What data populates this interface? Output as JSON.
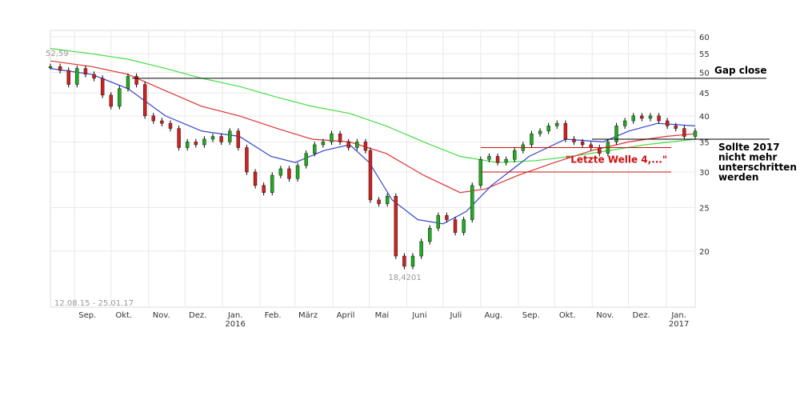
{
  "chart_data": {
    "type": "line",
    "ylim": [
      15,
      62
    ],
    "y_scale": "log",
    "yticks": [
      20,
      25,
      30,
      35,
      40,
      45,
      50,
      55,
      60
    ],
    "xlim": [
      "2015-08-12",
      "2017-01-25"
    ],
    "date_range_label": "12.08.15 - 25.01.17",
    "month_ticks": [
      {
        "date": "2015-09-01",
        "label": "Sep."
      },
      {
        "date": "2015-10-01",
        "label": "Okt."
      },
      {
        "date": "2015-11-01",
        "label": "Nov."
      },
      {
        "date": "2015-12-01",
        "label": "Dez."
      },
      {
        "date": "2016-01-01",
        "label": "Jan.",
        "year": "2016"
      },
      {
        "date": "2016-02-01",
        "label": "Feb."
      },
      {
        "date": "2016-03-01",
        "label": "März"
      },
      {
        "date": "2016-04-01",
        "label": "April"
      },
      {
        "date": "2016-05-01",
        "label": "Mai"
      },
      {
        "date": "2016-06-01",
        "label": "Juni"
      },
      {
        "date": "2016-07-01",
        "label": "Juli"
      },
      {
        "date": "2016-08-01",
        "label": "Aug."
      },
      {
        "date": "2016-09-01",
        "label": "Sep."
      },
      {
        "date": "2016-10-01",
        "label": "Okt."
      },
      {
        "date": "2016-11-01",
        "label": "Nov."
      },
      {
        "date": "2016-12-01",
        "label": "Dez."
      },
      {
        "date": "2017-01-01",
        "label": "Jan.",
        "year": "2017"
      }
    ],
    "price": {
      "color": "#000000",
      "points": [
        [
          "2015-08-12",
          51.5
        ],
        [
          "2015-08-20",
          50.5
        ],
        [
          "2015-08-27",
          47.0
        ],
        [
          "2015-09-03",
          51.0
        ],
        [
          "2015-09-10",
          49.5
        ],
        [
          "2015-09-17",
          48.5
        ],
        [
          "2015-09-24",
          44.5
        ],
        [
          "2015-10-01",
          42.0
        ],
        [
          "2015-10-08",
          46.0
        ],
        [
          "2015-10-15",
          49.0
        ],
        [
          "2015-10-22",
          47.0
        ],
        [
          "2015-10-29",
          40.0
        ],
        [
          "2015-11-05",
          39.0
        ],
        [
          "2015-11-12",
          38.5
        ],
        [
          "2015-11-19",
          37.5
        ],
        [
          "2015-11-26",
          34.0
        ],
        [
          "2015-12-03",
          35.0
        ],
        [
          "2015-12-10",
          34.5
        ],
        [
          "2015-12-17",
          35.5
        ],
        [
          "2015-12-24",
          36.0
        ],
        [
          "2015-12-31",
          35.0
        ],
        [
          "2016-01-07",
          37.0
        ],
        [
          "2016-01-14",
          34.0
        ],
        [
          "2016-01-21",
          30.0
        ],
        [
          "2016-01-28",
          28.0
        ],
        [
          "2016-02-04",
          27.0
        ],
        [
          "2016-02-11",
          29.5
        ],
        [
          "2016-02-18",
          30.5
        ],
        [
          "2016-02-25",
          29.0
        ],
        [
          "2016-03-03",
          31.0
        ],
        [
          "2016-03-10",
          33.0
        ],
        [
          "2016-03-17",
          34.5
        ],
        [
          "2016-03-24",
          35.0
        ],
        [
          "2016-03-31",
          36.5
        ],
        [
          "2016-04-07",
          35.0
        ],
        [
          "2016-04-14",
          34.0
        ],
        [
          "2016-04-21",
          35.0
        ],
        [
          "2016-04-28",
          33.5
        ],
        [
          "2016-05-02",
          26.0
        ],
        [
          "2016-05-09",
          25.5
        ],
        [
          "2016-05-16",
          26.5
        ],
        [
          "2016-05-23",
          19.5
        ],
        [
          "2016-05-30",
          18.5
        ],
        [
          "2016-06-06",
          19.5
        ],
        [
          "2016-06-13",
          21.0
        ],
        [
          "2016-06-20",
          22.5
        ],
        [
          "2016-06-27",
          24.0
        ],
        [
          "2016-07-04",
          23.5
        ],
        [
          "2016-07-11",
          22.0
        ],
        [
          "2016-07-18",
          23.5
        ],
        [
          "2016-07-25",
          28.0
        ],
        [
          "2016-08-01",
          32.0
        ],
        [
          "2016-08-08",
          32.5
        ],
        [
          "2016-08-15",
          31.5
        ],
        [
          "2016-08-22",
          32.0
        ],
        [
          "2016-08-29",
          33.5
        ],
        [
          "2016-09-05",
          34.5
        ],
        [
          "2016-09-12",
          36.5
        ],
        [
          "2016-09-19",
          37.0
        ],
        [
          "2016-09-26",
          38.0
        ],
        [
          "2016-10-03",
          38.5
        ],
        [
          "2016-10-10",
          35.5
        ],
        [
          "2016-10-17",
          35.0
        ],
        [
          "2016-10-24",
          34.5
        ],
        [
          "2016-10-31",
          34.0
        ],
        [
          "2016-11-07",
          33.0
        ],
        [
          "2016-11-14",
          35.0
        ],
        [
          "2016-11-21",
          38.0
        ],
        [
          "2016-11-28",
          39.0
        ],
        [
          "2016-12-05",
          40.0
        ],
        [
          "2016-12-12",
          39.5
        ],
        [
          "2016-12-19",
          40.0
        ],
        [
          "2016-12-26",
          39.0
        ],
        [
          "2017-01-02",
          38.0
        ],
        [
          "2017-01-09",
          37.5
        ],
        [
          "2017-01-16",
          36.0
        ],
        [
          "2017-01-25",
          37.0
        ]
      ]
    },
    "ma_short": {
      "color": "#3344cc",
      "points": [
        [
          "2015-08-12",
          51.0
        ],
        [
          "2015-09-15",
          49.5
        ],
        [
          "2015-10-15",
          46.0
        ],
        [
          "2015-11-15",
          40.0
        ],
        [
          "2015-12-15",
          37.0
        ],
        [
          "2016-01-15",
          36.0
        ],
        [
          "2016-02-10",
          32.5
        ],
        [
          "2016-03-01",
          31.5
        ],
        [
          "2016-03-25",
          33.5
        ],
        [
          "2016-04-15",
          34.5
        ],
        [
          "2016-05-01",
          31.5
        ],
        [
          "2016-05-20",
          26.0
        ],
        [
          "2016-06-10",
          23.5
        ],
        [
          "2016-07-01",
          23.0
        ],
        [
          "2016-07-20",
          24.5
        ],
        [
          "2016-08-10",
          28.0
        ],
        [
          "2016-09-10",
          32.5
        ],
        [
          "2016-10-10",
          35.5
        ],
        [
          "2016-11-10",
          35.0
        ],
        [
          "2016-12-01",
          37.0
        ],
        [
          "2016-12-25",
          38.5
        ],
        [
          "2017-01-25",
          38.0
        ]
      ]
    },
    "ma_mid": {
      "color": "#dd3333",
      "points": [
        [
          "2015-08-12",
          53.0
        ],
        [
          "2015-09-15",
          51.5
        ],
        [
          "2015-10-15",
          49.5
        ],
        [
          "2015-11-15",
          45.5
        ],
        [
          "2015-12-15",
          42.0
        ],
        [
          "2016-01-15",
          40.0
        ],
        [
          "2016-02-15",
          37.5
        ],
        [
          "2016-03-15",
          35.5
        ],
        [
          "2016-04-15",
          35.0
        ],
        [
          "2016-05-15",
          33.0
        ],
        [
          "2016-06-15",
          29.5
        ],
        [
          "2016-07-15",
          27.0
        ],
        [
          "2016-08-05",
          27.5
        ],
        [
          "2016-09-01",
          29.5
        ],
        [
          "2016-10-01",
          31.5
        ],
        [
          "2016-11-01",
          33.5
        ],
        [
          "2016-12-01",
          35.0
        ],
        [
          "2017-01-01",
          36.0
        ],
        [
          "2017-01-25",
          36.5
        ]
      ]
    },
    "ma_long": {
      "color": "#44dd44",
      "points": [
        [
          "2015-08-12",
          56.5
        ],
        [
          "2015-09-15",
          55.0
        ],
        [
          "2015-10-15",
          53.5
        ],
        [
          "2015-11-15",
          51.0
        ],
        [
          "2015-12-15",
          48.5
        ],
        [
          "2016-01-15",
          46.5
        ],
        [
          "2016-02-15",
          44.0
        ],
        [
          "2016-03-15",
          42.0
        ],
        [
          "2016-04-15",
          40.5
        ],
        [
          "2016-05-15",
          38.0
        ],
        [
          "2016-06-15",
          35.0
        ],
        [
          "2016-07-15",
          32.5
        ],
        [
          "2016-08-15",
          31.5
        ],
        [
          "2016-09-15",
          31.8
        ],
        [
          "2016-10-15",
          32.5
        ],
        [
          "2016-11-15",
          33.5
        ],
        [
          "2016-12-15",
          34.5
        ],
        [
          "2017-01-25",
          35.5
        ]
      ]
    },
    "annotations": {
      "high_label": "52,59",
      "high_point": [
        "2015-08-12",
        52.59
      ],
      "low_label": "18,4201",
      "low_point": [
        "2016-05-30",
        18.42
      ],
      "gap_close": {
        "label": "Gap close",
        "y": 48.5
      },
      "support": {
        "label_lines": [
          "Sollte 2017",
          "nicht mehr",
          "unterschritten",
          "werden"
        ],
        "y": 35.5
      },
      "channel": {
        "label": "\"Letzte Welle 4,...\"",
        "upper_y": 34.0,
        "lower_y": 30.0,
        "start": "2016-08-01",
        "end": "2016-12-31"
      }
    }
  }
}
